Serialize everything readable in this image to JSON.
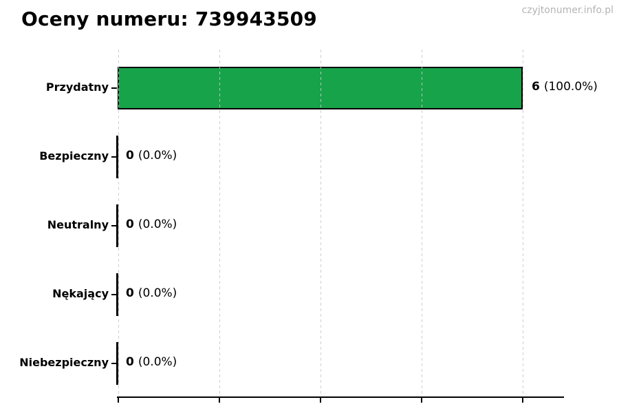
{
  "header": {
    "title": "Oceny numeru: 739943509",
    "watermark": "czyjtonumer.info.pl"
  },
  "chart_data": {
    "type": "bar",
    "orientation": "horizontal",
    "title": "Oceny numeru: 739943509",
    "categories": [
      "Przydatny",
      "Bezpieczny",
      "Neutralny",
      "Nękający",
      "Niebezpieczny"
    ],
    "values": [
      6,
      0,
      0,
      0,
      0
    ],
    "percent_labels": [
      "(100.0%)",
      "(0.0%)",
      "(0.0%)",
      "(0.0%)",
      "(0.0%)"
    ],
    "value_labels": [
      "6 (100.0%)",
      "0 (0.0%)",
      "0 (0.0%)",
      "0 (0.0%)",
      "0 (0.0%)"
    ],
    "xlabel": "",
    "ylabel": "",
    "xlim": [
      0,
      6
    ],
    "xticks": [
      0,
      1.5,
      3,
      4.5,
      6
    ],
    "xtick_labels_visible": false,
    "grid": "vertical-dashed",
    "grid_color": "#c9c9c9",
    "bar_color": "#17a34a",
    "bar_edge_color": "#000000",
    "axis_color": "#000000",
    "legend": "none"
  }
}
